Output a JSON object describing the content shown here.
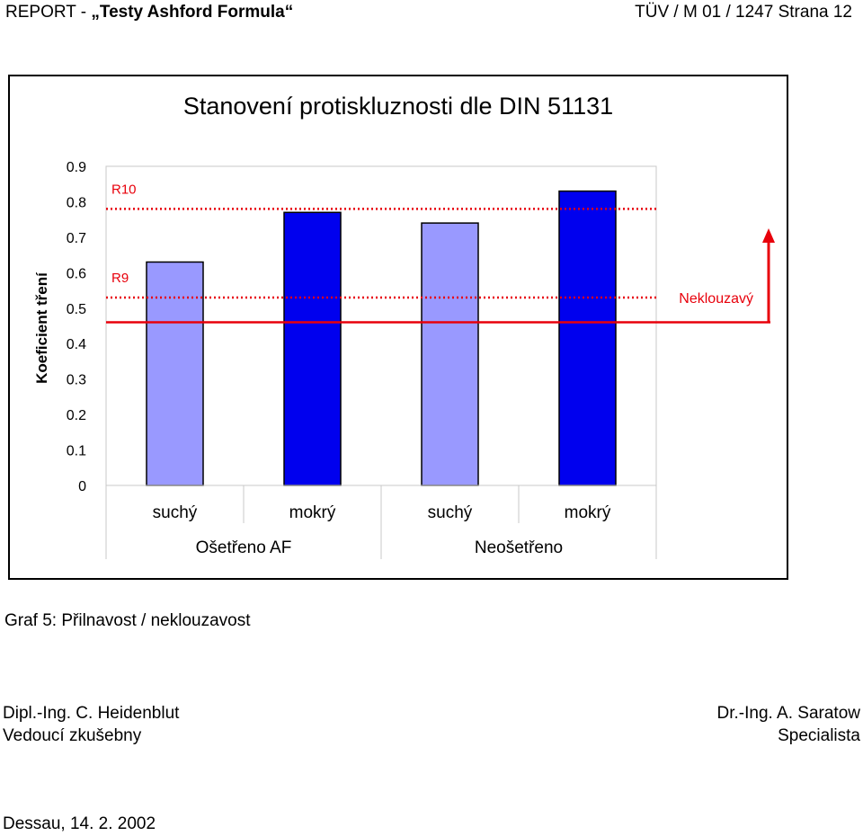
{
  "header": {
    "report_label": "REPORT -",
    "report_title": "„Testy Ashford Formula“",
    "doc_ref": "TÜV / M 01 / 1247  Strana 12"
  },
  "chart_data": {
    "type": "bar",
    "title": "Stanovení protiskluznosti dle DIN 51131",
    "ylabel": "Koeficient tření",
    "ylim": [
      0,
      0.9
    ],
    "yticks": [
      "0",
      "0.1",
      "0.2",
      "0.3",
      "0.4",
      "0.5",
      "0.6",
      "0.7",
      "0.8",
      "0.9"
    ],
    "categories": [
      "suchý",
      "mokrý",
      "suchý",
      "mokrý"
    ],
    "groups": [
      {
        "label": "Ošetřeno AF",
        "span": [
          0,
          1
        ]
      },
      {
        "label": "Neošetřeno",
        "span": [
          2,
          3
        ]
      }
    ],
    "values": [
      0.63,
      0.77,
      0.74,
      0.83
    ],
    "bar_colors": [
      "#9999ff",
      "#0000ee",
      "#9999ff",
      "#0000ee"
    ],
    "reference_lines": [
      {
        "label": "R10",
        "value": 0.78,
        "color": "#e8000b",
        "style": "dotted"
      },
      {
        "label": "R9",
        "value": 0.53,
        "color": "#e8000b",
        "style": "dotted"
      },
      {
        "label": "",
        "value": 0.46,
        "color": "#e8000b",
        "style": "solid"
      }
    ],
    "annotation": {
      "label": "Neklouzavý",
      "color": "#e8000b"
    }
  },
  "caption": "Graf 5: Přilnavost / neklouzavost",
  "signatures": {
    "left": {
      "name": "Dipl.-Ing. C. Heidenblut",
      "role": "Vedoucí zkušebny"
    },
    "right": {
      "name": "Dr.-Ing. A. Saratow",
      "role": "Specialista"
    }
  },
  "date": "Dessau, 14. 2. 2002"
}
